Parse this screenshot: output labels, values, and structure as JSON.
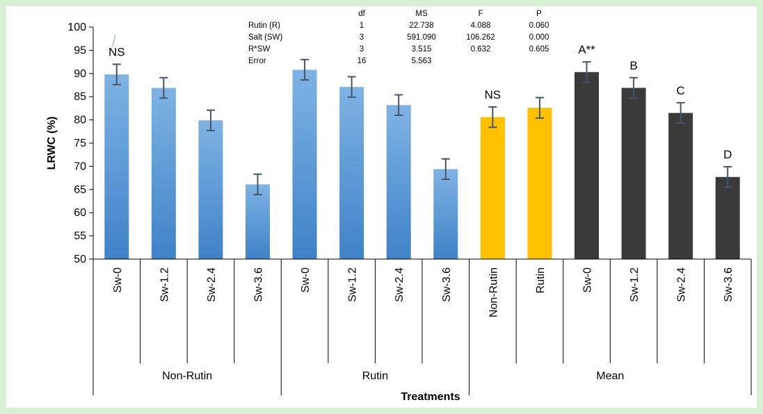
{
  "chart_data": {
    "type": "bar",
    "title": "",
    "xlabel": "Treatments",
    "ylabel": "LRWC (%)",
    "ylim": [
      50,
      100
    ],
    "yticks": [
      50,
      55,
      60,
      65,
      70,
      75,
      80,
      85,
      90,
      95,
      100
    ],
    "grid": false,
    "groups": [
      {
        "name": "Non-Rutin",
        "categories": [
          "Sw-0",
          "Sw-1.2",
          "Sw-2.4",
          "Sw-3.6"
        ]
      },
      {
        "name": "Rutin",
        "categories": [
          "Sw-0",
          "Sw-1.2",
          "Sw-2.4",
          "Sw-3.6"
        ]
      },
      {
        "name": "Mean",
        "categories": [
          "Non-Rutin",
          "Rutin",
          "Sw-0",
          "Sw-1.2",
          "Sw-2.4",
          "Sw-3.6"
        ]
      }
    ],
    "bars": [
      {
        "group": "Non-Rutin",
        "category": "Sw-0",
        "value": 89.8,
        "error": 2.2,
        "color": "#5b9bd5",
        "label": "NS"
      },
      {
        "group": "Non-Rutin",
        "category": "Sw-1.2",
        "value": 86.9,
        "error": 2.2,
        "color": "#5b9bd5",
        "label": ""
      },
      {
        "group": "Non-Rutin",
        "category": "Sw-2.4",
        "value": 79.9,
        "error": 2.2,
        "color": "#5b9bd5",
        "label": ""
      },
      {
        "group": "Non-Rutin",
        "category": "Sw-3.6",
        "value": 66.1,
        "error": 2.2,
        "color": "#5b9bd5",
        "label": ""
      },
      {
        "group": "Rutin",
        "category": "Sw-0",
        "value": 90.8,
        "error": 2.2,
        "color": "#5b9bd5",
        "label": ""
      },
      {
        "group": "Rutin",
        "category": "Sw-1.2",
        "value": 87.1,
        "error": 2.2,
        "color": "#5b9bd5",
        "label": ""
      },
      {
        "group": "Rutin",
        "category": "Sw-2.4",
        "value": 83.2,
        "error": 2.2,
        "color": "#5b9bd5",
        "label": ""
      },
      {
        "group": "Rutin",
        "category": "Sw-3.6",
        "value": 69.4,
        "error": 2.2,
        "color": "#5b9bd5",
        "label": ""
      },
      {
        "group": "Mean",
        "category": "Non-Rutin",
        "value": 80.6,
        "error": 2.2,
        "color": "#ffc000",
        "label": "NS"
      },
      {
        "group": "Mean",
        "category": "Rutin",
        "value": 82.6,
        "error": 2.2,
        "color": "#ffc000",
        "label": ""
      },
      {
        "group": "Mean",
        "category": "Sw-0",
        "value": 90.3,
        "error": 2.2,
        "color": "#3a3a3a",
        "label": "A**"
      },
      {
        "group": "Mean",
        "category": "Sw-1.2",
        "value": 86.9,
        "error": 2.2,
        "color": "#3a3a3a",
        "label": "B"
      },
      {
        "group": "Mean",
        "category": "Sw-2.4",
        "value": 81.5,
        "error": 2.2,
        "color": "#3a3a3a",
        "label": "C"
      },
      {
        "group": "Mean",
        "category": "Sw-3.6",
        "value": 67.7,
        "error": 2.2,
        "color": "#3a3a3a",
        "label": "D"
      }
    ],
    "anova_table": {
      "headers": [
        "",
        "df",
        "MS",
        "F",
        "P"
      ],
      "rows": [
        [
          "Rutin (R)",
          "1",
          "22.738",
          "4.088",
          "0.060"
        ],
        [
          "Salt (SW)",
          "3",
          "591.090",
          "106.262",
          "0.000"
        ],
        [
          "R*SW",
          "3",
          "3.515",
          "0.632",
          "0.605"
        ],
        [
          "Error",
          "16",
          "5.563",
          "",
          ""
        ]
      ]
    },
    "colors": {
      "axis": "#000000",
      "errorbar": "#44546a"
    }
  }
}
